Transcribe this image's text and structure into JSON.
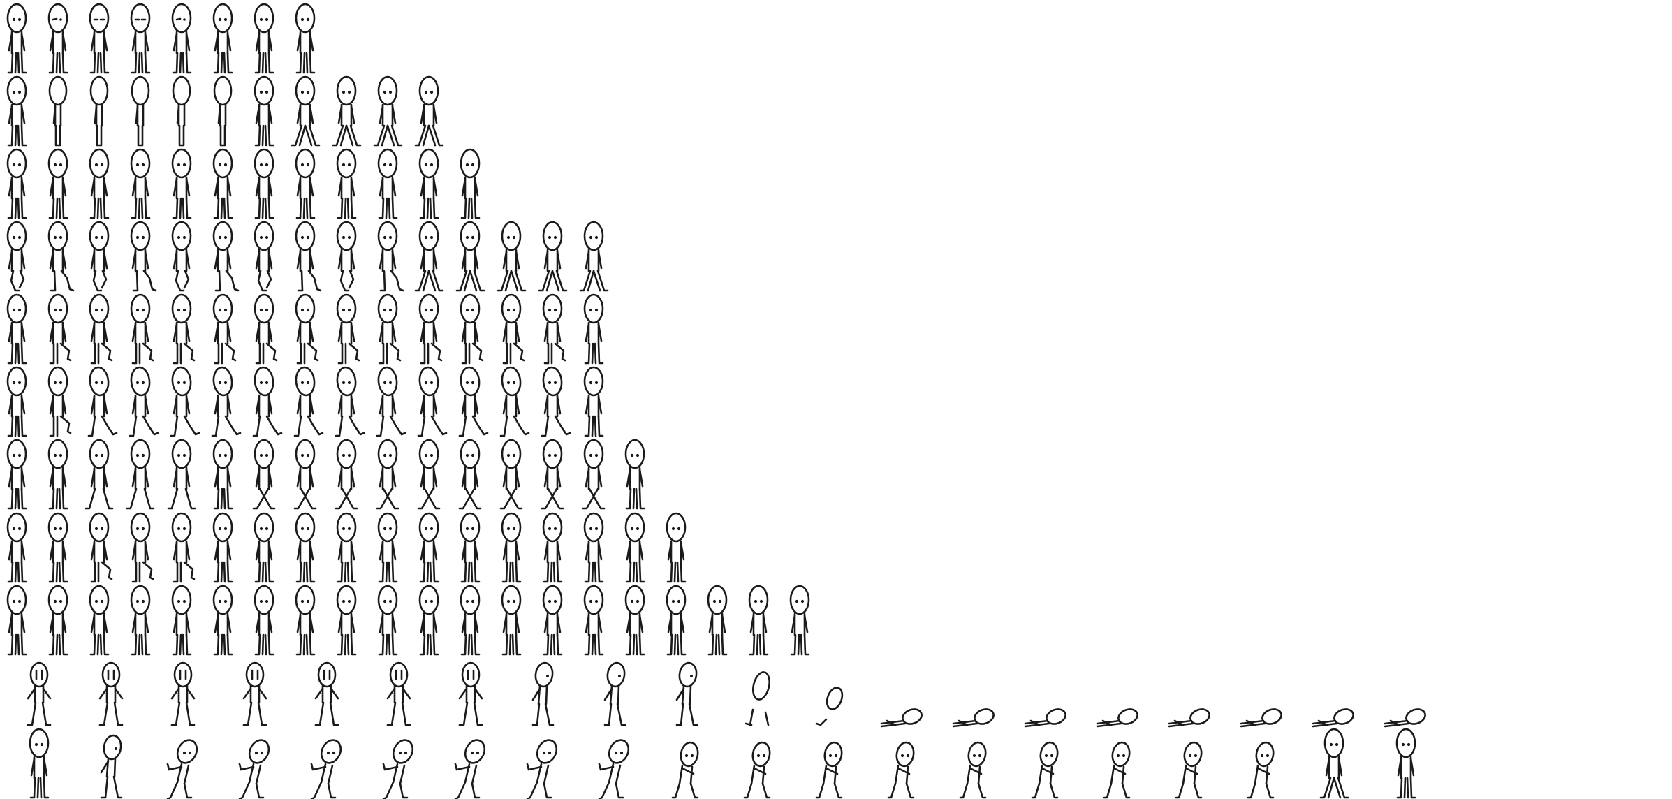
{
  "sheet": {
    "kind": "character sprite sheet",
    "background": "#ffffff",
    "ink_color": "#1a1a1a",
    "rows": [
      {
        "animation": "idle-blink",
        "frames": 8,
        "poses": [
          "stand",
          "blink-half",
          "blink-closed",
          "blink-closed",
          "blink-half",
          "stand",
          "stand",
          "stand"
        ]
      },
      {
        "animation": "turn",
        "frames": 11,
        "poses": [
          "front",
          "side",
          "side",
          "side",
          "side",
          "side",
          "front",
          "walk-wide",
          "walk-wide",
          "walk-wide",
          "walk-wide"
        ]
      },
      {
        "animation": "idle",
        "frames": 12,
        "poses": [
          "stand",
          "stand",
          "stand",
          "stand",
          "stand",
          "stand",
          "stand",
          "stand",
          "stand",
          "stand",
          "stand",
          "stand"
        ]
      },
      {
        "animation": "walk",
        "frames": 15,
        "poses": [
          "walk-a",
          "walk-b",
          "walk-c",
          "walk-d",
          "walk-e",
          "walk-f",
          "walk-g",
          "walk-h",
          "walk-a",
          "walk-b",
          "stride",
          "stride",
          "stride",
          "stride",
          "stride"
        ]
      },
      {
        "animation": "step-knee",
        "frames": 15,
        "poses": [
          "stand",
          "knee-up",
          "knee-up",
          "knee-up",
          "knee-up",
          "knee-up",
          "knee-up",
          "knee-up",
          "knee-up",
          "knee-up",
          "knee-up",
          "knee-up",
          "knee-up",
          "knee-up",
          "stand"
        ]
      },
      {
        "animation": "march",
        "frames": 15,
        "poses": [
          "stand",
          "knee-up",
          "kick",
          "kick",
          "kick",
          "kick",
          "kick",
          "kick",
          "kick",
          "kick",
          "kick",
          "kick",
          "kick",
          "kick",
          "stand"
        ]
      },
      {
        "animation": "cross-step",
        "frames": 16,
        "poses": [
          "stand",
          "stand",
          "wide",
          "wide",
          "wide",
          "stand",
          "cross",
          "cross",
          "cross",
          "cross",
          "cross",
          "cross",
          "cross",
          "cross",
          "cross",
          "stand"
        ]
      },
      {
        "animation": "shift",
        "frames": 17,
        "poses": [
          "stand",
          "stand",
          "knee-up",
          "knee-up",
          "knee-up",
          "stand",
          "stand",
          "stand",
          "stand",
          "stand",
          "stand",
          "stand",
          "stand",
          "stand",
          "stand",
          "stand",
          "stand"
        ]
      },
      {
        "animation": "idle-long",
        "frames": 20,
        "poses": [
          "stand",
          "stand",
          "stand",
          "stand",
          "stand",
          "stand",
          "stand",
          "stand",
          "stand",
          "stand",
          "stand",
          "stand",
          "stand",
          "stand",
          "stand",
          "stand",
          "stand",
          "stand",
          "stand",
          "stand"
        ]
      },
      {
        "animation": "shock-faint",
        "frames": 20,
        "poses": [
          "shock",
          "shock",
          "shock",
          "shock",
          "shock",
          "shock",
          "shock",
          "lean",
          "lean",
          "lean",
          "slump",
          "sit",
          "fall-a",
          "fall-b",
          "fall-c",
          "lying",
          "lying",
          "lying",
          "lying",
          "lying"
        ]
      },
      {
        "animation": "stumble-recover",
        "frames": 20,
        "poses": [
          "stand",
          "lean",
          "stumble",
          "stumble",
          "stumble",
          "stumble",
          "stumble",
          "stumble",
          "stumble",
          "crouch",
          "crouch",
          "crouch",
          "crouch",
          "crouch",
          "crouch",
          "crouch",
          "crouch",
          "crouch",
          "walk-wide",
          "stand"
        ]
      }
    ]
  }
}
